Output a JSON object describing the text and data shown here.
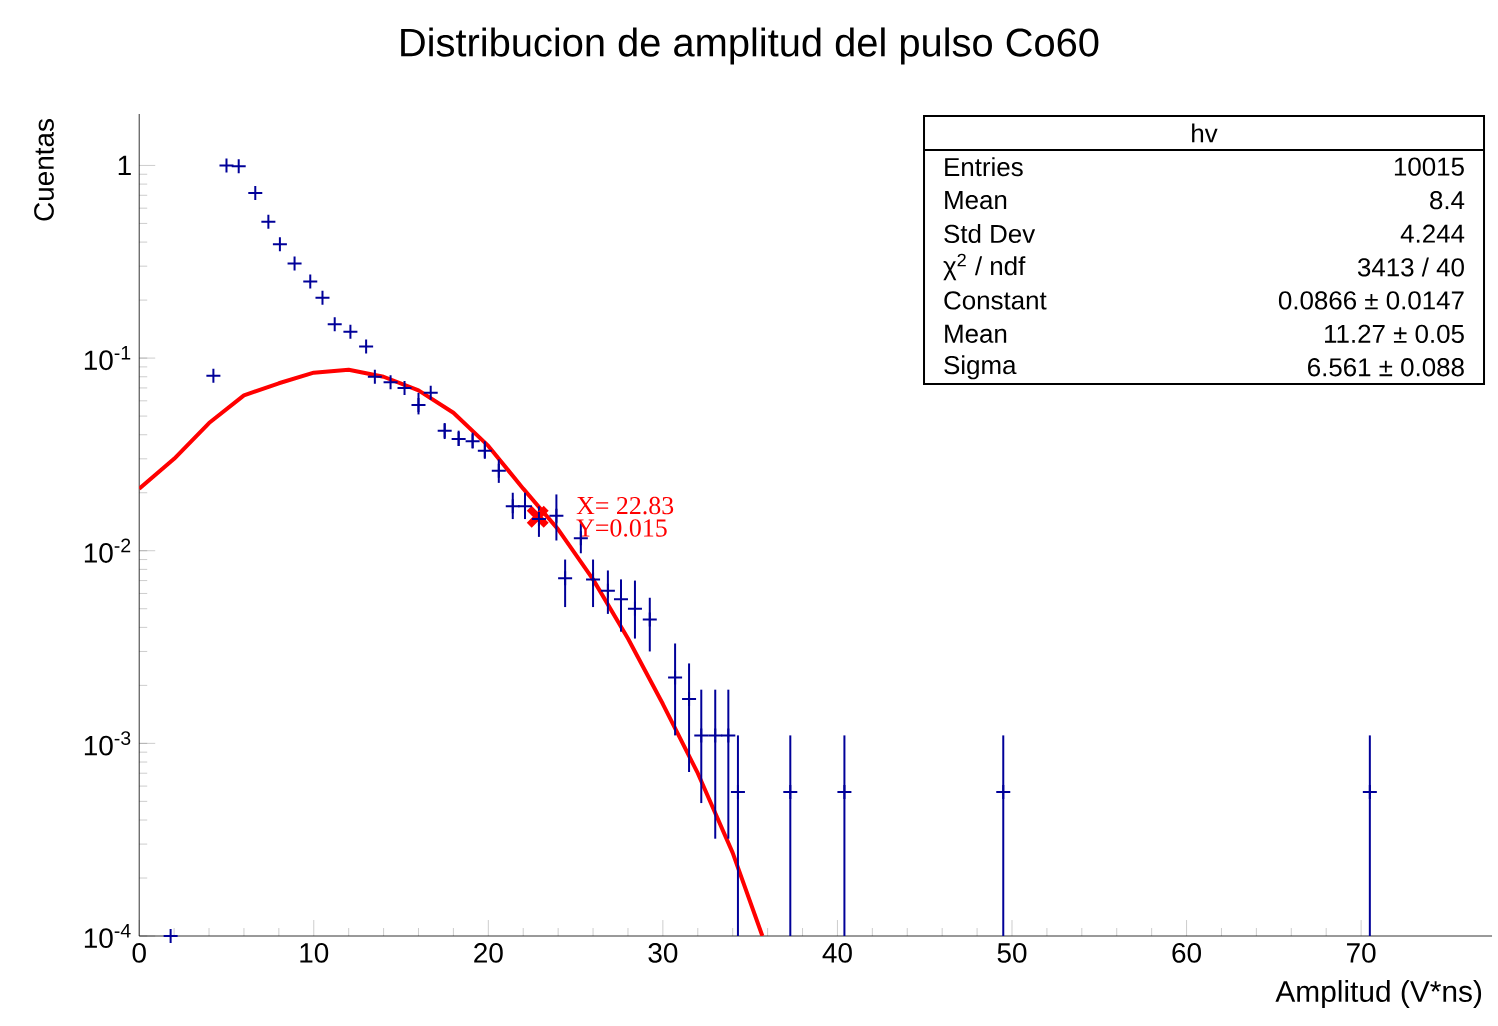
{
  "chart_data": {
    "type": "scatter",
    "title": "Distribucion de amplitud del pulso Co60",
    "xlabel": "Amplitud (V*ns)",
    "ylabel": "Cuentas",
    "log": "y",
    "grid": false,
    "xlim": [
      0,
      77.5
    ],
    "ylim": [
      0.0001,
      1.85
    ],
    "xticks": [
      0,
      10,
      20,
      30,
      40,
      50,
      60,
      70
    ],
    "yticks": [
      {
        "value": 0.0001,
        "label": "10$^{-4}$"
      },
      {
        "value": 0.001,
        "label": "10$^{-3}$"
      },
      {
        "value": 0.01,
        "label": "10$^{-2}$"
      },
      {
        "value": 0.1,
        "label": "10$^{-1}$"
      },
      1
    ],
    "annotations": [
      {
        "text": "X= 22.83",
        "x": 22.83,
        "y": 0.015
      },
      {
        "text": "Y=0.015",
        "x": 22.83,
        "y": 0.015
      },
      "hv",
      "Entries",
      "10015",
      "Mean",
      "8.4",
      "Std Dev",
      "4.244",
      "χ$^{2}$ / ndf",
      "3413 / 40",
      "Constant",
      "0.0866 ± 0.0147",
      "Mean",
      "11.27 ± 0.05",
      "Sigma",
      "6.561 ± 0.088"
    ],
    "series": [
      {
        "color": "#000099",
        "marker": "cross",
        "x": [
          1.8,
          4.25,
          5.0,
          5.7,
          6.65,
          7.4,
          8.06,
          8.9,
          9.8,
          10.5,
          11.2,
          12.1,
          13.0,
          13.5,
          14.4,
          15.2,
          16.0,
          16.7,
          17.5,
          18.3,
          19.1,
          19.8,
          20.6,
          21.4,
          22.1,
          22.9,
          23.9,
          24.4,
          25.3,
          26.0,
          26.85,
          27.6,
          28.4,
          29.25,
          30.7,
          31.5,
          32.2,
          33.0,
          33.75,
          34.3,
          37.3,
          40.4,
          49.5,
          70.5
        ],
        "values": [
          0.0001,
          0.081,
          1.0,
          0.99,
          0.72,
          0.51,
          0.39,
          0.31,
          0.25,
          0.206,
          0.15,
          0.137,
          0.115,
          0.08,
          0.075,
          0.07,
          0.057,
          0.066,
          0.042,
          0.038,
          0.037,
          0.033,
          0.026,
          0.017,
          0.017,
          0.0146,
          0.0152,
          0.0072,
          0.0116,
          0.0071,
          0.0062,
          0.0056,
          0.005,
          0.0044,
          0.0022,
          0.0017,
          0.0011,
          0.0011,
          0.0011,
          0.00056,
          0.00056,
          0.00056,
          0.00056,
          0.00056
        ],
        "errors": [
          null,
          null,
          null,
          null,
          null,
          null,
          null,
          null,
          null,
          null,
          null,
          null,
          null,
          null,
          null,
          null,
          [
            0.051,
            0.066
          ],
          null,
          [
            0.038,
            0.046
          ],
          [
            0.035,
            0.042
          ],
          [
            0.034,
            0.041
          ],
          [
            0.03,
            0.037
          ],
          [
            0.0225,
            0.0298
          ],
          [
            0.0146,
            0.02
          ],
          [
            0.0146,
            0.02
          ],
          [
            0.0118,
            0.017
          ],
          [
            0.0113,
            0.0196
          ],
          [
            0.0051,
            0.009
          ],
          [
            0.0097,
            0.0139
          ],
          [
            0.0051,
            0.009
          ],
          [
            0.0047,
            0.0079
          ],
          [
            0.0038,
            0.0071
          ],
          [
            0.0035,
            0.007
          ],
          [
            0.003,
            0.0057
          ],
          [
            0.0011,
            0.0033
          ],
          [
            0.00071,
            0.0026
          ],
          [
            0.00049,
            0.0019
          ],
          [
            0.00032,
            0.0019
          ],
          [
            0.00032,
            0.0019
          ],
          [
            0.0001,
            0.0011
          ],
          [
            0.0001,
            0.0011
          ],
          [
            0.0001,
            0.0011
          ],
          [
            0.0001,
            0.0011
          ],
          [
            0.0001,
            0.0011
          ]
        ]
      },
      {
        "type": "line",
        "color": "#ff0000",
        "marker": "none",
        "line_style": "solid",
        "x": [
          0,
          2,
          4,
          6,
          8,
          10,
          12,
          14,
          16,
          18,
          20,
          22,
          24,
          26,
          28,
          30,
          32,
          34,
          35.7
        ],
        "values": [
          0.021,
          0.03,
          0.046,
          0.064,
          0.074,
          0.084,
          0.087,
          0.08,
          0.068,
          0.052,
          0.035,
          0.021,
          0.0129,
          0.0071,
          0.0035,
          0.0016,
          0.0007,
          0.00027,
          0.0001
        ]
      }
    ]
  }
}
